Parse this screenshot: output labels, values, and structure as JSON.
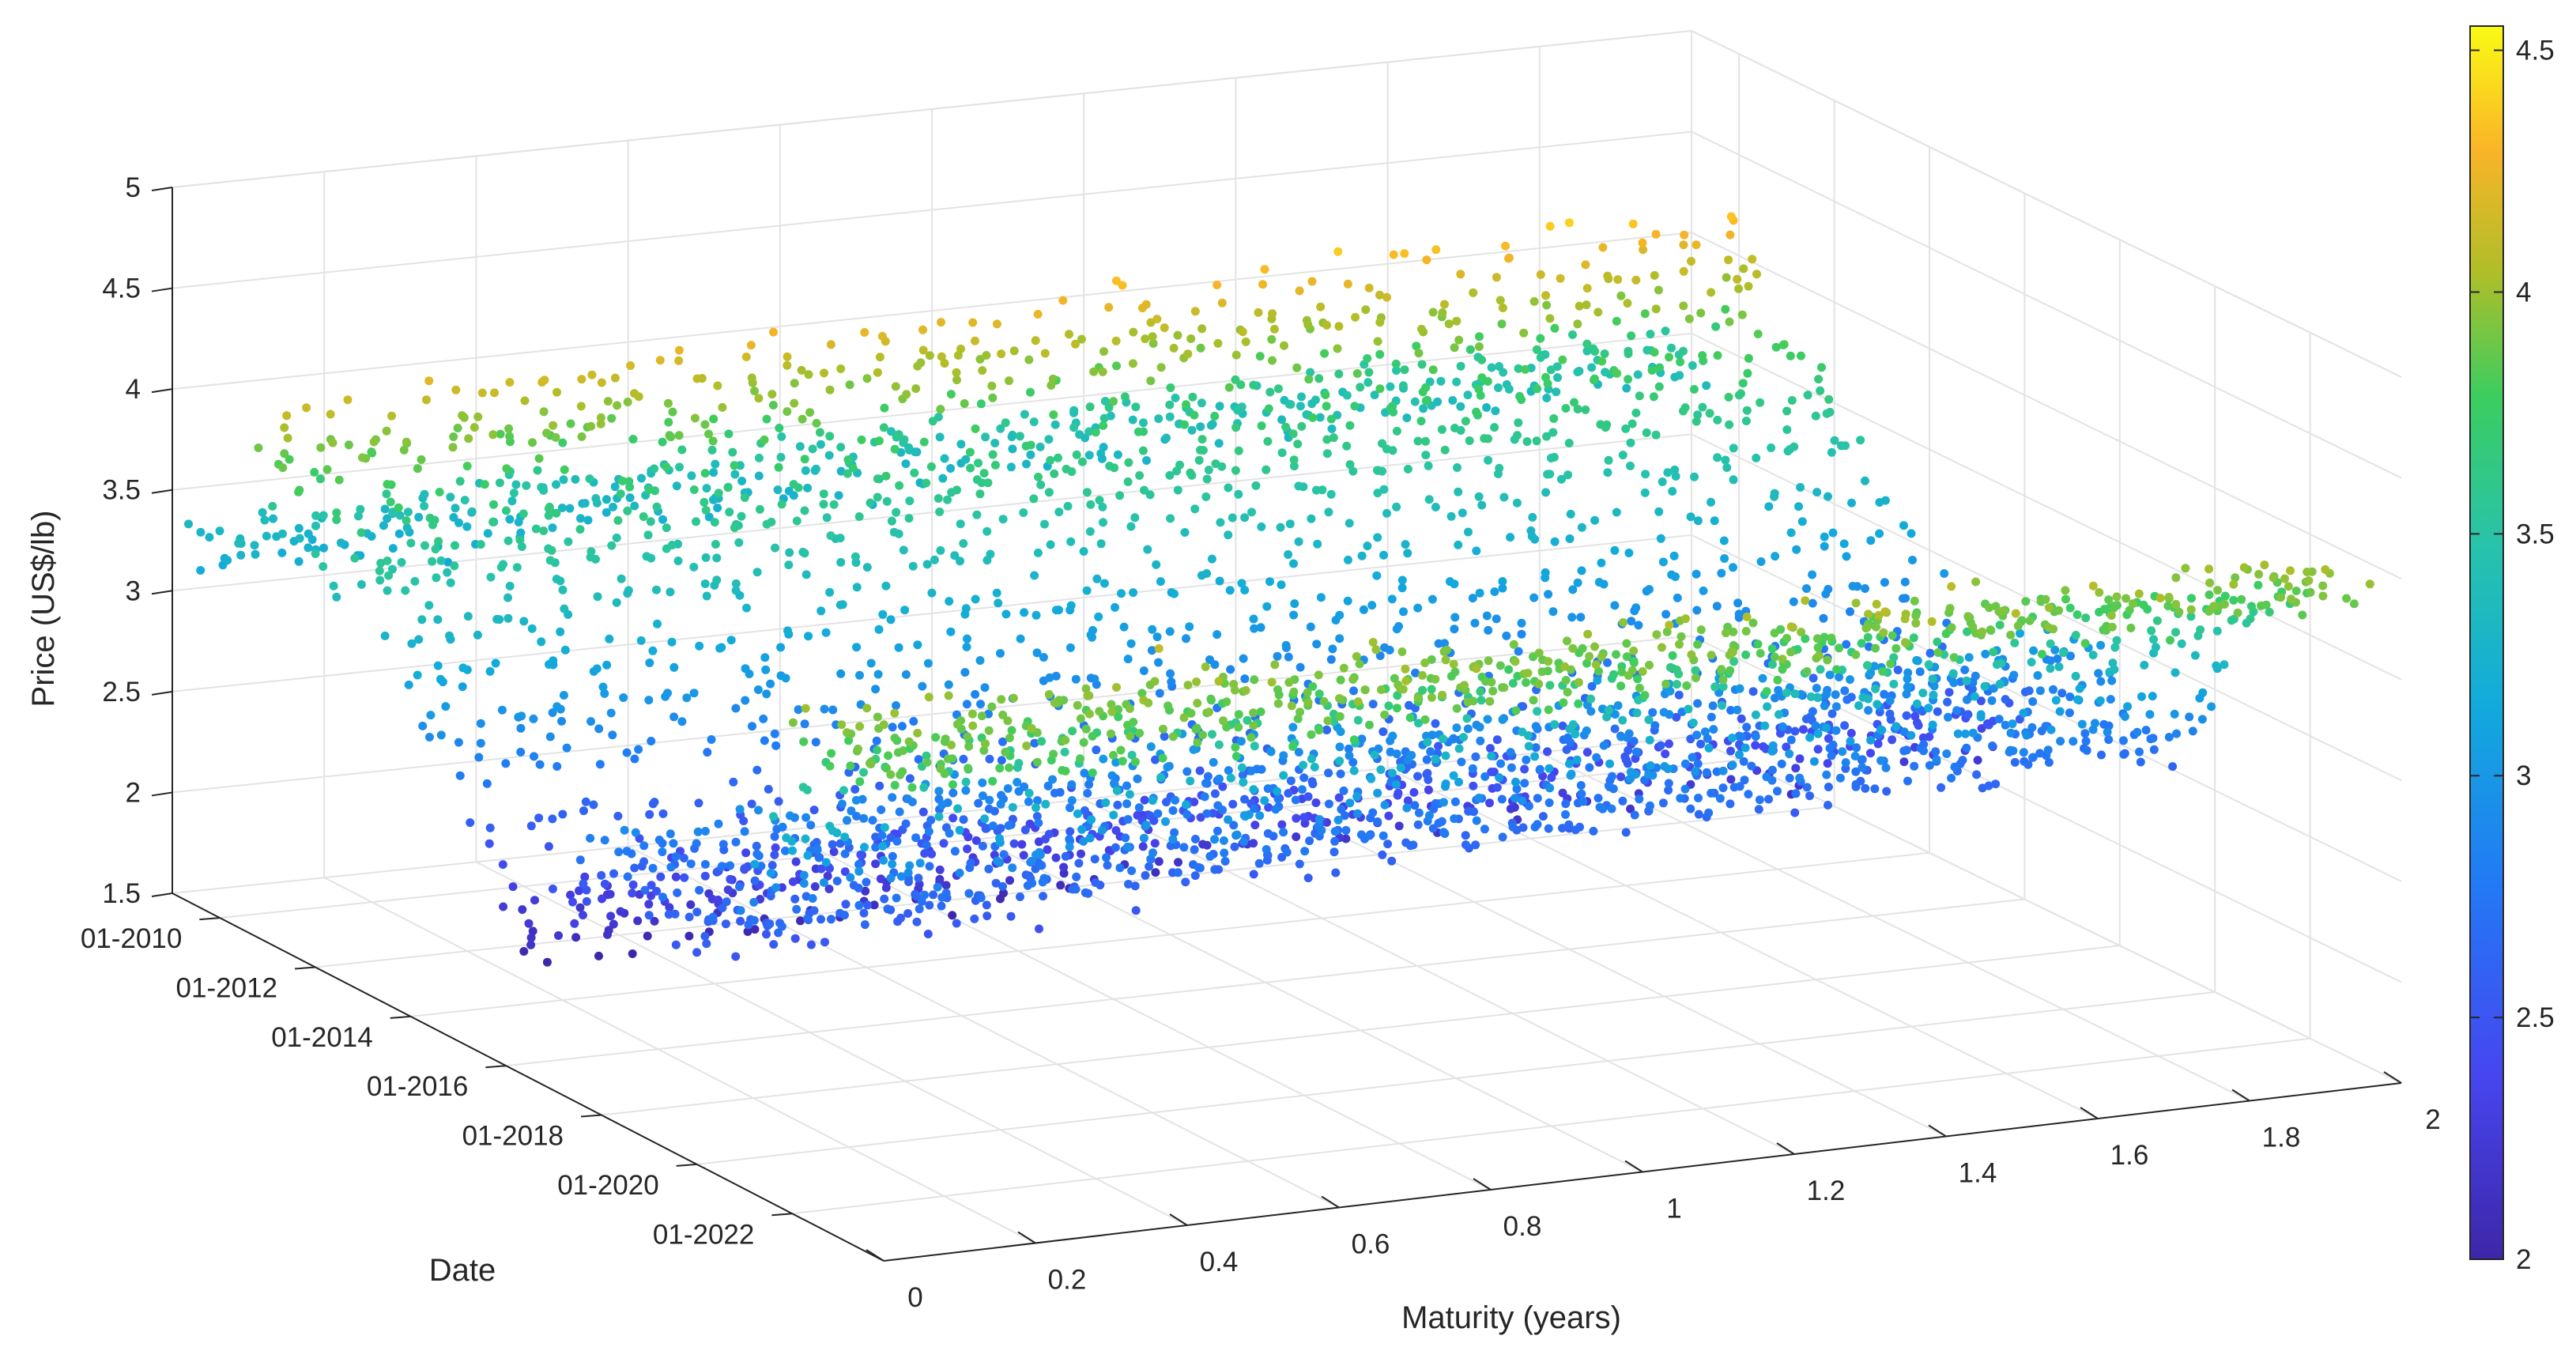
{
  "chart_data": {
    "type": "scatter3d",
    "title": "",
    "xlabel": "Maturity (years)",
    "ylabel": "Date",
    "zlabel": "Price (US$/lb)",
    "xlim": [
      0,
      2
    ],
    "ylim": [
      "01-2009",
      "12-2023"
    ],
    "zlim": [
      1.5,
      5
    ],
    "x_ticks": [
      "0",
      "0.2",
      "0.4",
      "0.6",
      "0.8",
      "1",
      "1.2",
      "1.4",
      "1.6",
      "1.8",
      "2"
    ],
    "y_ticks": [
      "01-2010",
      "01-2012",
      "01-2014",
      "01-2016",
      "01-2018",
      "01-2020",
      "01-2022"
    ],
    "z_ticks": [
      "1.5",
      "2",
      "2.5",
      "3",
      "3.5",
      "4",
      "4.5",
      "5"
    ],
    "colorbar": {
      "range": [
        2,
        4.55
      ],
      "ticks": [
        "2",
        "2.5",
        "3",
        "3.5",
        "4",
        "4.5"
      ],
      "colormap": "parula"
    },
    "grid": true,
    "series": [
      {
        "date": "01-2010",
        "prices": [
          3.25,
          3.33,
          3.4,
          3.47
        ]
      },
      {
        "date": "01-2011",
        "prices": [
          4.1,
          4.2,
          4.26,
          4.3
        ]
      },
      {
        "date": "01-2012",
        "prices": [
          3.55,
          3.62,
          3.67,
          3.71
        ]
      },
      {
        "date": "01-2013",
        "prices": [
          3.45,
          3.52,
          3.57,
          3.61
        ]
      },
      {
        "date": "01-2014",
        "prices": [
          3.05,
          3.12,
          3.17,
          3.21
        ]
      },
      {
        "date": "01-2015",
        "prices": [
          2.75,
          2.82,
          2.87,
          2.91
        ]
      },
      {
        "date": "01-2016",
        "prices": [
          2.05,
          2.15,
          2.23,
          2.29
        ]
      },
      {
        "date": "01-2017",
        "prices": [
          2.45,
          2.55,
          2.62,
          2.68
        ]
      },
      {
        "date": "01-2018",
        "prices": [
          2.85,
          2.95,
          3.01,
          3.05
        ]
      },
      {
        "date": "01-2019",
        "prices": [
          2.62,
          2.7,
          2.76,
          2.8
        ]
      },
      {
        "date": "01-2020",
        "prices": [
          2.55,
          2.63,
          2.69,
          2.73
        ]
      },
      {
        "date": "01-2021",
        "prices": [
          3.05,
          3.15,
          3.21,
          3.25
        ]
      },
      {
        "date": "01-2022",
        "prices": [
          3.95,
          3.9,
          3.82,
          3.72
        ]
      },
      {
        "date": "01-2023",
        "prices": [
          3.85,
          3.9,
          3.92,
          3.93
        ]
      }
    ]
  }
}
